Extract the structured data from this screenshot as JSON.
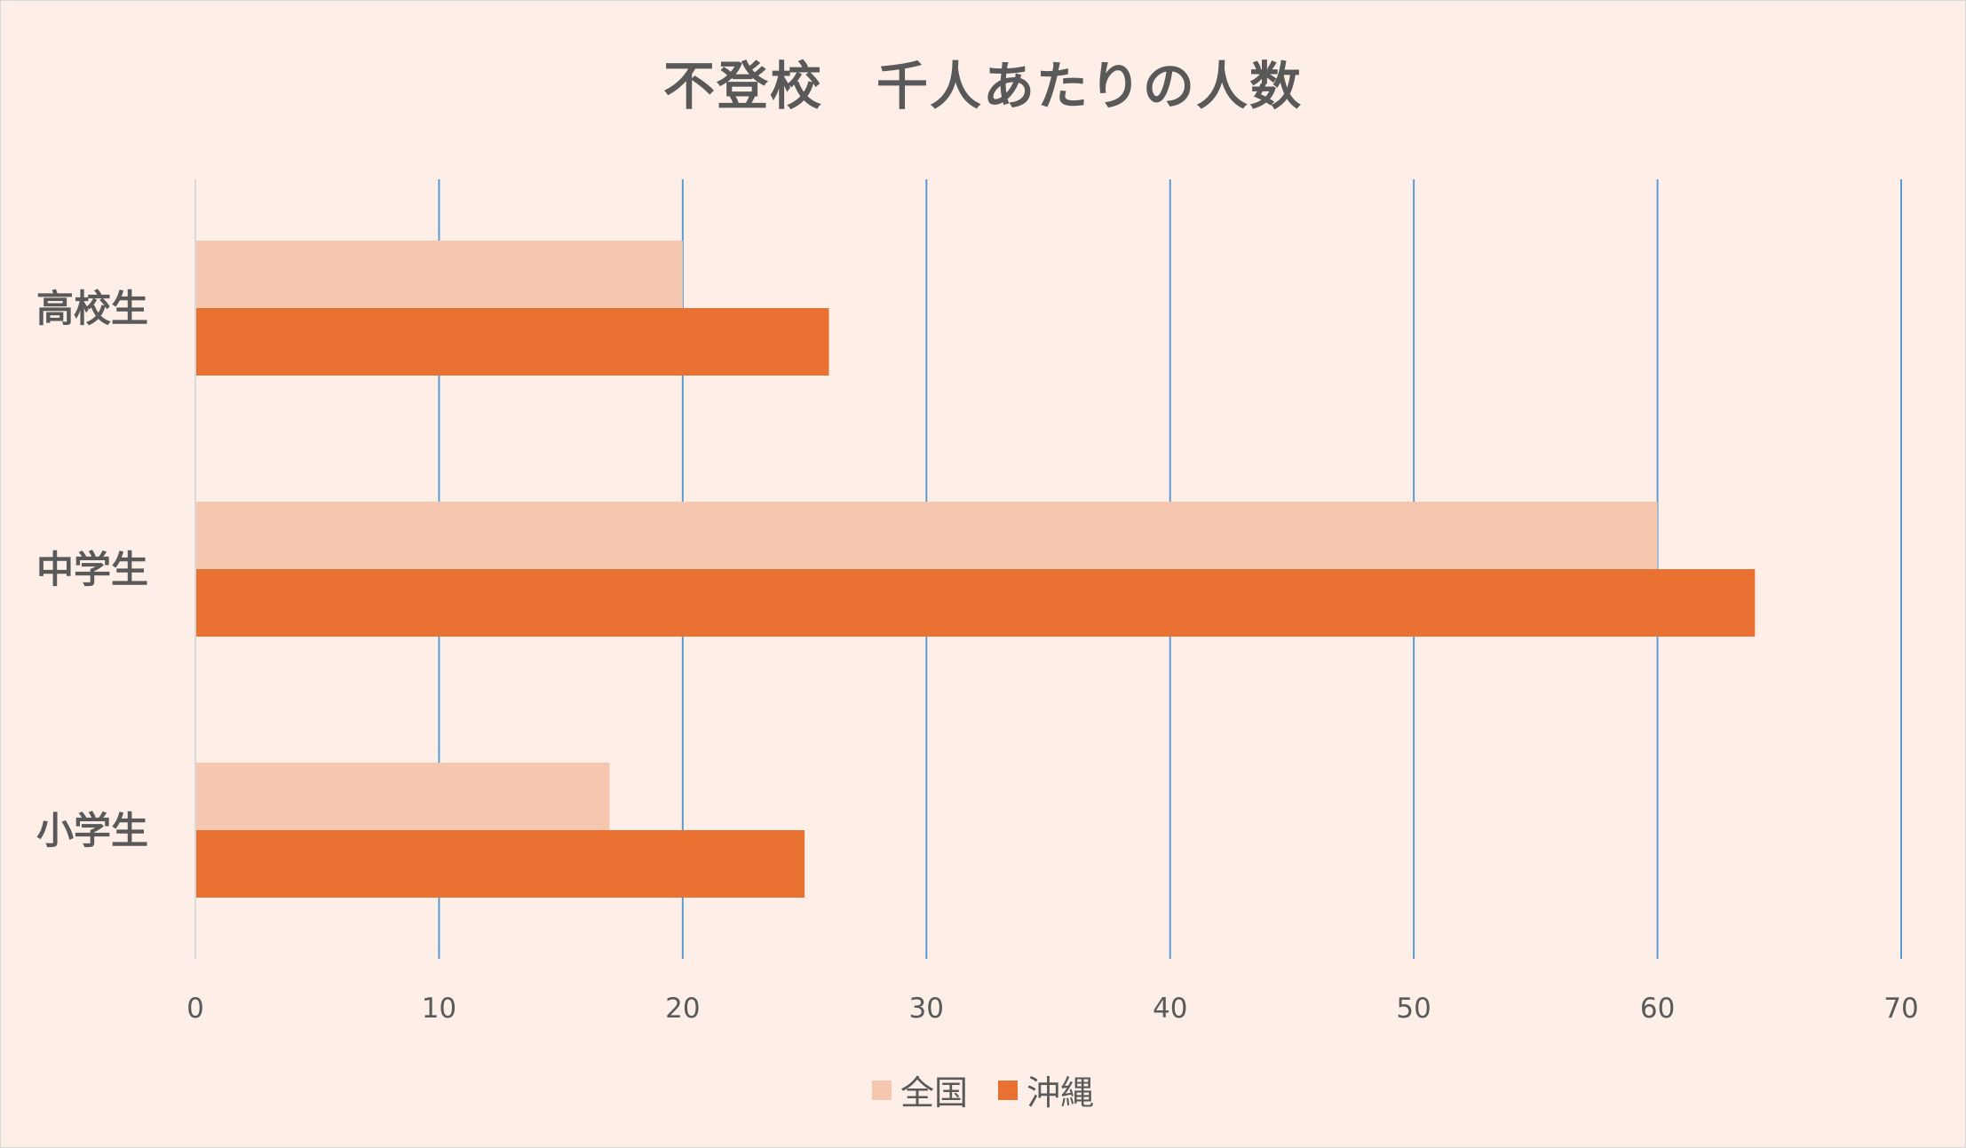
{
  "chart_data": {
    "type": "bar",
    "orientation": "horizontal",
    "title": "不登校　千人あたりの人数",
    "categories": [
      "高校生",
      "中学生",
      "小学生"
    ],
    "series": [
      {
        "name": "全国",
        "values": [
          20,
          60,
          17
        ],
        "color": "#f5c7ae"
      },
      {
        "name": "沖縄",
        "values": [
          26,
          64,
          25
        ],
        "color": "#e97132"
      }
    ],
    "xlim": [
      0,
      70
    ],
    "xticks": [
      0,
      10,
      20,
      30,
      40,
      50,
      60,
      70
    ],
    "grid": "vertical",
    "gridColor": "#5b9bd5",
    "legend": "bottom",
    "background": "#fdefe7"
  }
}
